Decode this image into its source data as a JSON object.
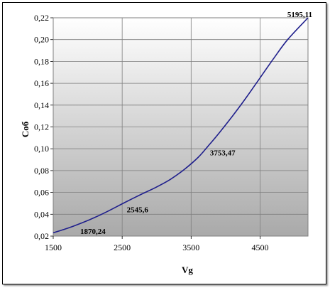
{
  "chart_data": {
    "type": "line",
    "title": "",
    "xlabel": "Vg",
    "ylabel": "Cоб",
    "xlim": [
      1500,
      5195.11
    ],
    "ylim": [
      0.02,
      0.22
    ],
    "x_ticks": [
      "1500",
      "2500",
      "3500",
      "4500"
    ],
    "y_ticks": [
      "0,02",
      "0,04",
      "0,06",
      "0,08",
      "0,10",
      "0,12",
      "0,14",
      "0,16",
      "0,18",
      "0,20",
      "0,22"
    ],
    "grid": true,
    "legend": "none",
    "series": [
      {
        "x": [
          1500,
          1700,
          1870.24,
          2100,
          2300,
          2545.6,
          2800,
          3000,
          3200,
          3400,
          3600,
          3753.47,
          3900,
          4100,
          4300,
          4500,
          4700,
          4900,
          5195.11
        ],
        "y": [
          0.023,
          0.027,
          0.031,
          0.037,
          0.043,
          0.051,
          0.059,
          0.065,
          0.072,
          0.081,
          0.092,
          0.103,
          0.114,
          0.13,
          0.147,
          0.165,
          0.183,
          0.2,
          0.22
        ]
      }
    ],
    "point_labels": [
      {
        "x": 1870.24,
        "y": 0.031,
        "text": "1870,24"
      },
      {
        "x": 2545.6,
        "y": 0.051,
        "text": "2545,6"
      },
      {
        "x": 3753.47,
        "y": 0.103,
        "text": "3753,47"
      },
      {
        "x": 5195.11,
        "y": 0.22,
        "text": "5195,11"
      }
    ],
    "colors": {
      "line": "#1f1f8c",
      "plot_bg_top": "#ffffff",
      "plot_bg_bottom": "#a9a9a9",
      "grid": "#7f7f7f"
    }
  }
}
